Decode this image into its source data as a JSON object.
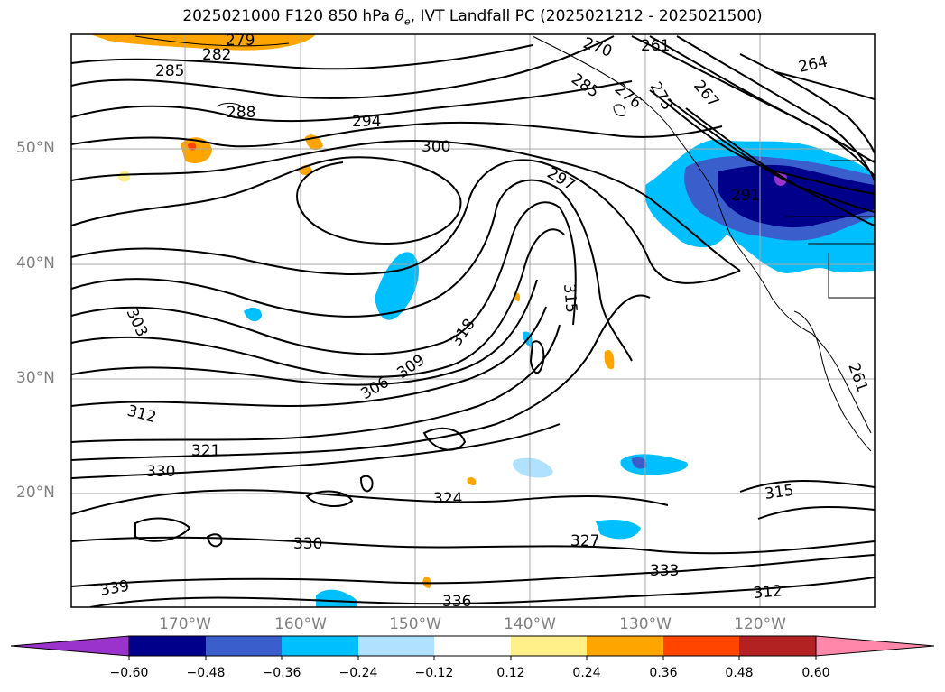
{
  "title_main": "2025021000 F120 850 hPa ",
  "title_var": "θ",
  "title_sub": "e",
  "title_rest": ", IVT Landfall PC (2025021212 - 2025021500)",
  "lat_labels": [
    "50°N",
    "40°N",
    "30°N",
    "20°N"
  ],
  "lon_labels": [
    "170°W",
    "160°W",
    "150°W",
    "140°W",
    "130°W",
    "120°W"
  ],
  "contour_labels": [
    "279",
    "282",
    "285",
    "288",
    "294",
    "300",
    "297",
    "315",
    "318",
    "309",
    "306",
    "303",
    "312",
    "321",
    "330",
    "324",
    "330",
    "327",
    "333",
    "336",
    "339",
    "312",
    "315",
    "261",
    "261",
    "264",
    "267",
    "270",
    "273",
    "276",
    "285",
    "291"
  ],
  "colorbar": {
    "colors": [
      "#9933cc",
      "#00008b",
      "#3a5fcd",
      "#00bfff",
      "#b0e2ff",
      "#ffffff",
      "#fff08a",
      "#ffa500",
      "#ff4500",
      "#b22222",
      "#ff88aa"
    ],
    "tick_labels": [
      "−0.60",
      "−0.48",
      "−0.36",
      "−0.24",
      "−0.12",
      "0.12",
      "0.24",
      "0.36",
      "0.48",
      "0.60"
    ]
  }
}
